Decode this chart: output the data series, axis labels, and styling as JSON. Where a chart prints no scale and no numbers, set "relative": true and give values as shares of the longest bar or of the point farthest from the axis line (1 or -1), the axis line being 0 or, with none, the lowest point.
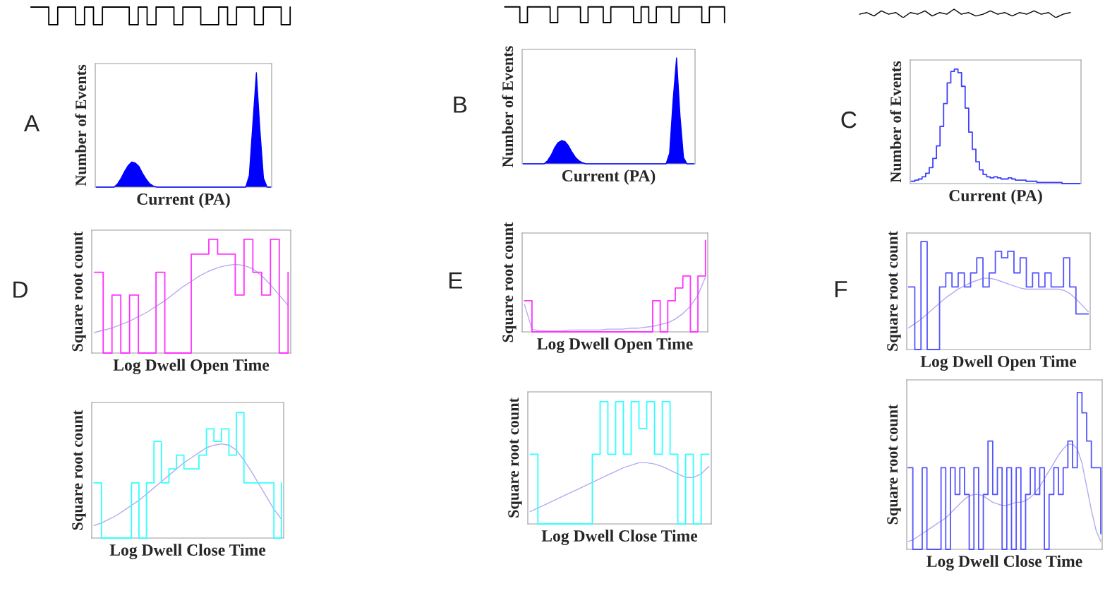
{
  "chart_data": [
    {
      "type": "step",
      "relative": true,
      "tick_labels": false,
      "categories": [
        null,
        null,
        null,
        null,
        null,
        null,
        null,
        null,
        null,
        null,
        null,
        null,
        null,
        null,
        null,
        null,
        null,
        null,
        null,
        null,
        null,
        null,
        null,
        null,
        null,
        null,
        null,
        null,
        null,
        null
      ],
      "series": [
        {
          "color": "#000000",
          "values": [
            1,
            1,
            0,
            1,
            1,
            0,
            1,
            0,
            1,
            1,
            1,
            0,
            1,
            0,
            1,
            1,
            0,
            1,
            1,
            0,
            0,
            1,
            0,
            1,
            1,
            0,
            1,
            1,
            0,
            1
          ]
        }
      ]
    },
    {
      "type": "step",
      "relative": true,
      "tick_labels": false,
      "categories": [
        null,
        null,
        null,
        null,
        null,
        null,
        null,
        null,
        null,
        null,
        null,
        null,
        null,
        null,
        null,
        null,
        null,
        null,
        null,
        null,
        null,
        null,
        null,
        null,
        null,
        null,
        null,
        null,
        null,
        null
      ],
      "series": [
        {
          "color": "#000000",
          "values": [
            1,
            1,
            0,
            1,
            1,
            1,
            0,
            1,
            1,
            1,
            0,
            1,
            1,
            0,
            1,
            1,
            1,
            0,
            1,
            0,
            1,
            1,
            0,
            1,
            1,
            1,
            0,
            1,
            1,
            0
          ]
        }
      ]
    },
    {
      "type": "line",
      "relative": true,
      "tick_labels": false,
      "categories": [
        null,
        null,
        null,
        null,
        null,
        null,
        null,
        null,
        null,
        null,
        null,
        null,
        null,
        null,
        null,
        null,
        null,
        null,
        null,
        null,
        null,
        null,
        null,
        null,
        null,
        null,
        null,
        null,
        null,
        null
      ],
      "series": [
        {
          "color": "#000000",
          "values": [
            0.4,
            0.6,
            0.2,
            0.8,
            0.4,
            0.6,
            0,
            0.6,
            0.4,
            0.8,
            0.2,
            0.6,
            0.4,
            1,
            0.4,
            0.6,
            0.2,
            0.4,
            0.8,
            0.4,
            0.6,
            0.2,
            0.6,
            0.4,
            0.8,
            0.4,
            0.6,
            0,
            0.4,
            0.6
          ]
        }
      ]
    },
    {
      "type": "area",
      "relative": true,
      "tick_labels": false,
      "xlabel": "Current (PA)",
      "ylabel": "Number of Events",
      "annotations": [
        "A"
      ],
      "categories": [
        null,
        null,
        null,
        null,
        null,
        null,
        null,
        null,
        null,
        null,
        null,
        null,
        null,
        null,
        null,
        null,
        null,
        null,
        null,
        null,
        null,
        null,
        null,
        null,
        null,
        null,
        null,
        null,
        null,
        null,
        null,
        null,
        null,
        null,
        null,
        null,
        null,
        null,
        null,
        null,
        null,
        null,
        null,
        null,
        null,
        null,
        null,
        null,
        null,
        null
      ],
      "series": [
        {
          "color": "#0000ff",
          "values": [
            0,
            0,
            0,
            0,
            0,
            0,
            0.03,
            0.08,
            0.14,
            0.19,
            0.22,
            0.21,
            0.18,
            0.12,
            0.07,
            0.03,
            0.01,
            0,
            0,
            0,
            0,
            0,
            0,
            0,
            0,
            0,
            0,
            0,
            0,
            0,
            0,
            0,
            0,
            0,
            0,
            0,
            0,
            0,
            0,
            0,
            0,
            0,
            0,
            0.1,
            0.55,
            1.0,
            0.5,
            0.08,
            0,
            0
          ]
        }
      ]
    },
    {
      "type": "area",
      "relative": true,
      "tick_labels": false,
      "xlabel": "Current (PA)",
      "ylabel": "Number of Events",
      "annotations": [
        "B"
      ],
      "categories": [
        null,
        null,
        null,
        null,
        null,
        null,
        null,
        null,
        null,
        null,
        null,
        null,
        null,
        null,
        null,
        null,
        null,
        null,
        null,
        null,
        null,
        null,
        null,
        null,
        null,
        null,
        null,
        null,
        null,
        null,
        null,
        null,
        null,
        null,
        null,
        null,
        null,
        null,
        null,
        null,
        null,
        null,
        null,
        null,
        null,
        null,
        null,
        null,
        null,
        null
      ],
      "series": [
        {
          "color": "#0000ff",
          "values": [
            0,
            0,
            0,
            0,
            0,
            0,
            0,
            0.03,
            0.08,
            0.15,
            0.2,
            0.22,
            0.21,
            0.17,
            0.11,
            0.06,
            0.03,
            0.01,
            0,
            0,
            0,
            0,
            0,
            0,
            0,
            0,
            0,
            0,
            0,
            0,
            0,
            0,
            0,
            0,
            0,
            0,
            0,
            0,
            0,
            0,
            0,
            0,
            0.1,
            0.6,
            1.0,
            0.45,
            0.06,
            0,
            0,
            0
          ]
        }
      ]
    },
    {
      "type": "step",
      "relative": true,
      "tick_labels": false,
      "xlabel": "Current (PA)",
      "ylabel": "Number of Events",
      "annotations": [
        "C"
      ],
      "categories": [
        null,
        null,
        null,
        null,
        null,
        null,
        null,
        null,
        null,
        null,
        null,
        null,
        null,
        null,
        null,
        null,
        null,
        null,
        null,
        null,
        null,
        null,
        null,
        null,
        null,
        null,
        null,
        null,
        null,
        null,
        null,
        null,
        null,
        null,
        null,
        null,
        null,
        null,
        null,
        null,
        null,
        null,
        null,
        null,
        null,
        null,
        null,
        null
      ],
      "series": [
        {
          "color": "#4040ff",
          "values": [
            0.02,
            0.03,
            0.04,
            0.06,
            0.09,
            0.14,
            0.22,
            0.33,
            0.5,
            0.7,
            0.88,
            0.98,
            1.0,
            0.97,
            0.85,
            0.66,
            0.45,
            0.3,
            0.19,
            0.12,
            0.08,
            0.06,
            0.05,
            0.06,
            0.05,
            0.04,
            0.04,
            0.05,
            0.04,
            0.03,
            0.03,
            0.03,
            0.02,
            0.02,
            0.02,
            0.01,
            0.01,
            0.01,
            0.01,
            0.01,
            0.01,
            0.01,
            0,
            0,
            0,
            0,
            0,
            0
          ]
        }
      ]
    },
    {
      "type": "step",
      "relative": true,
      "tick_labels": false,
      "xlabel": "Log Dwell Open Time",
      "ylabel": "Square root count",
      "annotations": [
        "D"
      ],
      "categories": [
        null,
        null,
        null,
        null,
        null,
        null,
        null,
        null,
        null,
        null,
        null,
        null,
        null,
        null,
        null,
        null,
        null,
        null,
        null,
        null,
        null,
        null,
        null
      ],
      "series": [
        {
          "color": "#ff33ff",
          "values": [
            0.71,
            0,
            0.51,
            0,
            0.51,
            0,
            0,
            0.71,
            0,
            0,
            0,
            0.87,
            0.87,
            1.0,
            0.87,
            0.87,
            0.51,
            1.0,
            0.71,
            0.51,
            1.0,
            0,
            0.71
          ]
        },
        {
          "type": "line",
          "color": "#b4aaf0",
          "values": [
            0.18,
            0.2,
            0.22,
            0.25,
            0.28,
            0.32,
            0.36,
            0.41,
            0.46,
            0.52,
            0.58,
            0.63,
            0.68,
            0.72,
            0.75,
            0.77,
            0.78,
            0.77,
            0.74,
            0.68,
            0.6,
            0.51,
            0.42
          ]
        }
      ]
    },
    {
      "type": "step",
      "relative": true,
      "tick_labels": false,
      "xlabel": "Log Dwell Open Time",
      "ylabel": "Square root count",
      "annotations": [
        "E"
      ],
      "categories": [
        null,
        null,
        null,
        null,
        null,
        null,
        null,
        null,
        null,
        null,
        null,
        null,
        null,
        null,
        null,
        null,
        null,
        null,
        null,
        null,
        null,
        null,
        null,
        null,
        null
      ],
      "series": [
        {
          "color": "#ff33ff",
          "values": [
            0.34,
            0,
            0,
            0,
            0,
            0,
            0,
            0,
            0,
            0,
            0,
            0,
            0,
            0,
            0,
            0,
            0,
            0.34,
            0,
            0.34,
            0.48,
            0.61,
            0,
            0.61,
            1.0
          ]
        },
        {
          "type": "line",
          "color": "#b4aaf0",
          "values": [
            0.3,
            0.03,
            0.01,
            0.01,
            0.01,
            0.01,
            0.02,
            0.02,
            0.02,
            0.02,
            0.02,
            0.03,
            0.03,
            0.03,
            0.04,
            0.04,
            0.05,
            0.06,
            0.08,
            0.1,
            0.14,
            0.2,
            0.28,
            0.4,
            0.6
          ]
        }
      ]
    },
    {
      "type": "step",
      "relative": true,
      "tick_labels": false,
      "xlabel": "Log Dwell Open Time",
      "ylabel": "Square root count",
      "annotations": [
        "F"
      ],
      "categories": [
        null,
        null,
        null,
        null,
        null,
        null,
        null,
        null,
        null,
        null,
        null,
        null,
        null,
        null,
        null,
        null,
        null,
        null,
        null,
        null,
        null,
        null,
        null,
        null,
        null,
        null,
        null,
        null,
        null,
        null
      ],
      "series": [
        {
          "color": "#5555ff",
          "values": [
            0.58,
            0,
            1.0,
            0,
            0,
            0.58,
            0.71,
            0.58,
            0.71,
            0.58,
            0.71,
            0.85,
            0.58,
            0.71,
            0.91,
            0.85,
            0.91,
            0.71,
            0.85,
            0.58,
            0.71,
            0.58,
            0.71,
            0.58,
            0.58,
            0.85,
            0.58,
            0.33,
            0.33,
            0.33
          ]
        },
        {
          "type": "line",
          "color": "#b4aaf0",
          "values": [
            0.2,
            0.24,
            0.28,
            0.33,
            0.38,
            0.43,
            0.48,
            0.52,
            0.56,
            0.59,
            0.62,
            0.64,
            0.66,
            0.66,
            0.65,
            0.63,
            0.61,
            0.59,
            0.57,
            0.56,
            0.56,
            0.56,
            0.56,
            0.56,
            0.56,
            0.55,
            0.52,
            0.47,
            0.41,
            0.35
          ]
        }
      ]
    },
    {
      "type": "step",
      "relative": true,
      "tick_labels": false,
      "xlabel": "Log Dwell Close Time",
      "ylabel": "Square root count",
      "categories": [
        null,
        null,
        null,
        null,
        null,
        null,
        null,
        null,
        null,
        null,
        null,
        null,
        null,
        null,
        null,
        null,
        null,
        null,
        null,
        null,
        null,
        null,
        null,
        null,
        null,
        null
      ],
      "series": [
        {
          "color": "#33ffff",
          "values": [
            0.44,
            0,
            0,
            0,
            0,
            0.44,
            0,
            0.44,
            0.77,
            0.44,
            0.55,
            0.66,
            0.55,
            0.55,
            0.66,
            0.87,
            0.77,
            0.87,
            0.66,
            1.0,
            0.44,
            0.44,
            0.44,
            0.44,
            0,
            0.44
          ]
        },
        {
          "type": "line",
          "color": "#b4aaf0",
          "values": [
            0.1,
            0.12,
            0.15,
            0.18,
            0.22,
            0.26,
            0.3,
            0.35,
            0.4,
            0.45,
            0.5,
            0.55,
            0.6,
            0.64,
            0.68,
            0.72,
            0.74,
            0.75,
            0.74,
            0.7,
            0.62,
            0.53,
            0.43,
            0.33,
            0.23,
            0.15
          ]
        }
      ]
    },
    {
      "type": "step",
      "relative": true,
      "tick_labels": false,
      "xlabel": "Log Dwell Close Time",
      "ylabel": "Square root count",
      "categories": [
        null,
        null,
        null,
        null,
        null,
        null,
        null,
        null,
        null,
        null,
        null,
        null,
        null,
        null,
        null,
        null,
        null,
        null,
        null,
        null,
        null,
        null,
        null,
        null
      ],
      "series": [
        {
          "color": "#33ffff",
          "values": [
            0.57,
            0,
            0,
            0,
            0,
            0,
            0,
            0,
            0.57,
            1.0,
            0.57,
            1.0,
            0.57,
            1.0,
            0.78,
            1.0,
            0.57,
            1.0,
            0.57,
            0,
            0.57,
            0,
            0.57,
            0.57
          ]
        },
        {
          "type": "line",
          "color": "#b4aaf0",
          "values": [
            0.1,
            0.13,
            0.16,
            0.19,
            0.22,
            0.25,
            0.28,
            0.31,
            0.34,
            0.37,
            0.4,
            0.43,
            0.46,
            0.48,
            0.5,
            0.5,
            0.49,
            0.47,
            0.44,
            0.41,
            0.38,
            0.38,
            0.41,
            0.47
          ]
        }
      ]
    },
    {
      "type": "step",
      "relative": true,
      "tick_labels": false,
      "xlabel": "Log Dwell Close Time",
      "ylabel": "Square root count",
      "categories": [
        null,
        null,
        null,
        null,
        null,
        null,
        null,
        null,
        null,
        null,
        null,
        null,
        null,
        null,
        null,
        null,
        null,
        null,
        null,
        null,
        null,
        null,
        null,
        null,
        null,
        null,
        null,
        null,
        null,
        null,
        null,
        null,
        null,
        null,
        null,
        null,
        null,
        null,
        null,
        null,
        null,
        null
      ],
      "series": [
        {
          "color": "#5555ff",
          "values": [
            0.52,
            0,
            0,
            0.52,
            0,
            0,
            0,
            0.52,
            0,
            0.52,
            0.35,
            0.52,
            0.35,
            0,
            0.52,
            0,
            0.35,
            0.69,
            0.35,
            0.52,
            0,
            0.52,
            0,
            0.52,
            0,
            0.35,
            0.52,
            0.35,
            0.52,
            0,
            0.35,
            0.52,
            0.35,
            0.52,
            0.69,
            0.52,
            1.0,
            0.87,
            0.69,
            0.52,
            0.52,
            0.1
          ]
        },
        {
          "type": "line",
          "color": "#b4aaf0",
          "values": [
            0.05,
            0.06,
            0.08,
            0.1,
            0.12,
            0.14,
            0.16,
            0.18,
            0.2,
            0.23,
            0.26,
            0.29,
            0.32,
            0.34,
            0.35,
            0.35,
            0.34,
            0.32,
            0.3,
            0.29,
            0.28,
            0.28,
            0.29,
            0.3,
            0.3,
            0.31,
            0.33,
            0.36,
            0.4,
            0.45,
            0.5,
            0.55,
            0.6,
            0.64,
            0.67,
            0.67,
            0.64,
            0.55,
            0.4,
            0.25,
            0.12,
            0.05
          ]
        }
      ]
    }
  ]
}
